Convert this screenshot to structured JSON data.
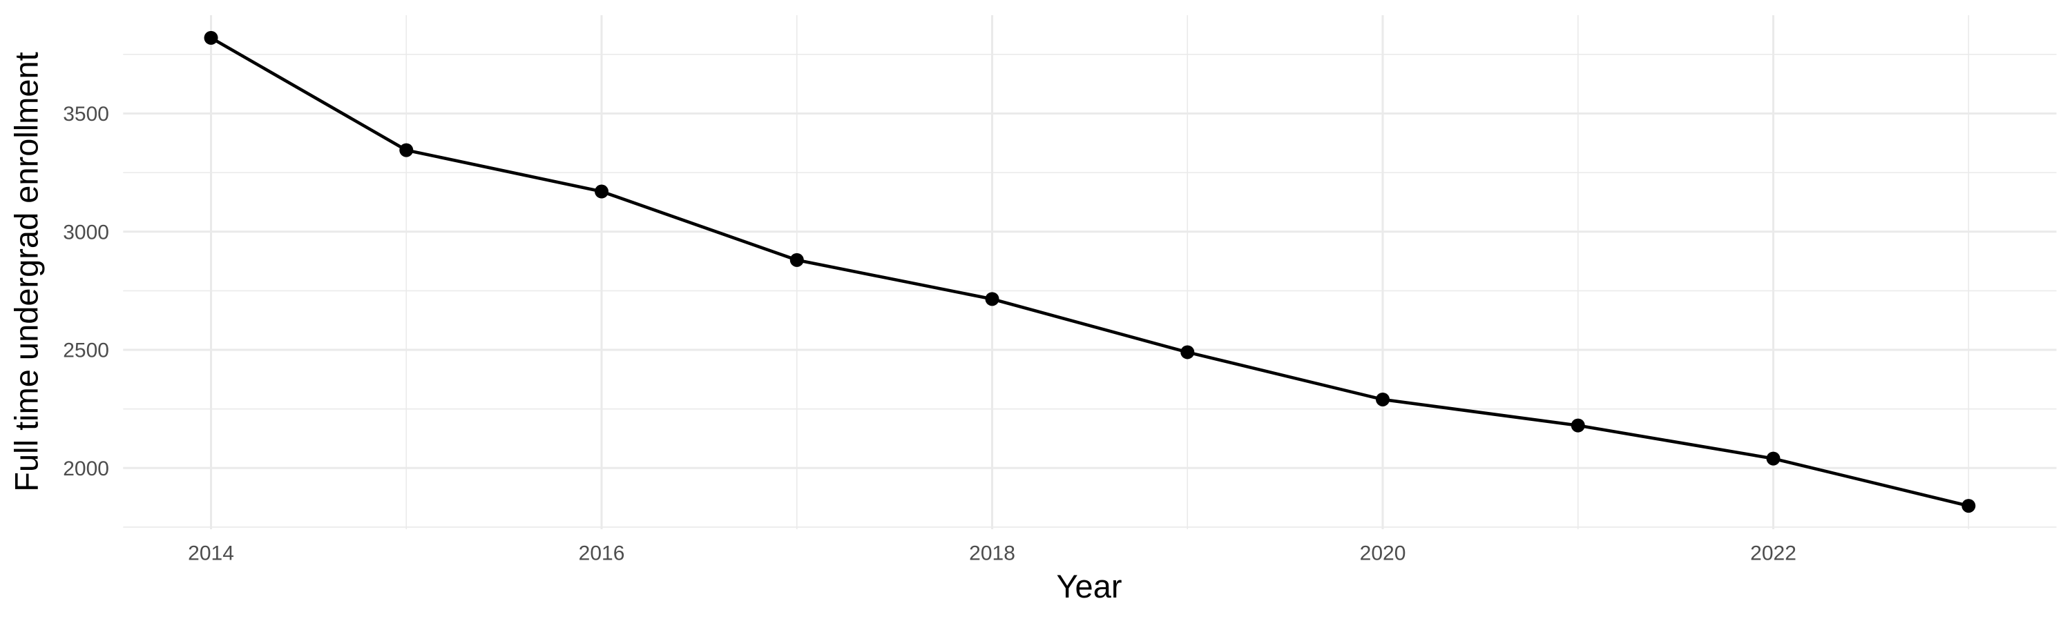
{
  "chart_data": {
    "type": "line",
    "title": "",
    "xlabel": "Year",
    "ylabel": "Full time undergrad enrollment",
    "series": [
      {
        "name": "Full time undergrad enrollment",
        "x": [
          2014,
          2015,
          2016,
          2017,
          2018,
          2019,
          2020,
          2021,
          2022,
          2023
        ],
        "values": [
          3820,
          3345,
          3170,
          2880,
          2715,
          2490,
          2290,
          2180,
          2040,
          1840
        ]
      }
    ],
    "x_major_ticks": [
      2014,
      2016,
      2018,
      2020,
      2022
    ],
    "x_minor_gridlines": [
      2015,
      2017,
      2019,
      2021,
      2023
    ],
    "y_major_ticks": [
      2000,
      2500,
      3000,
      3500
    ],
    "y_minor_gridlines": [
      1750,
      2250,
      2750,
      3250,
      3750
    ],
    "xlim": [
      2013.55,
      2023.45
    ],
    "ylim": [
      1741,
      3916
    ],
    "grid": "major-and-minor",
    "legend": "none",
    "point_marker": "filled-circle",
    "colors": {
      "line": "#000000",
      "point": "#000000",
      "gridline": "#EAEAEA",
      "tick_label": "#4D4D4D",
      "axis_title": "#000000",
      "background": "#FFFFFF"
    }
  }
}
